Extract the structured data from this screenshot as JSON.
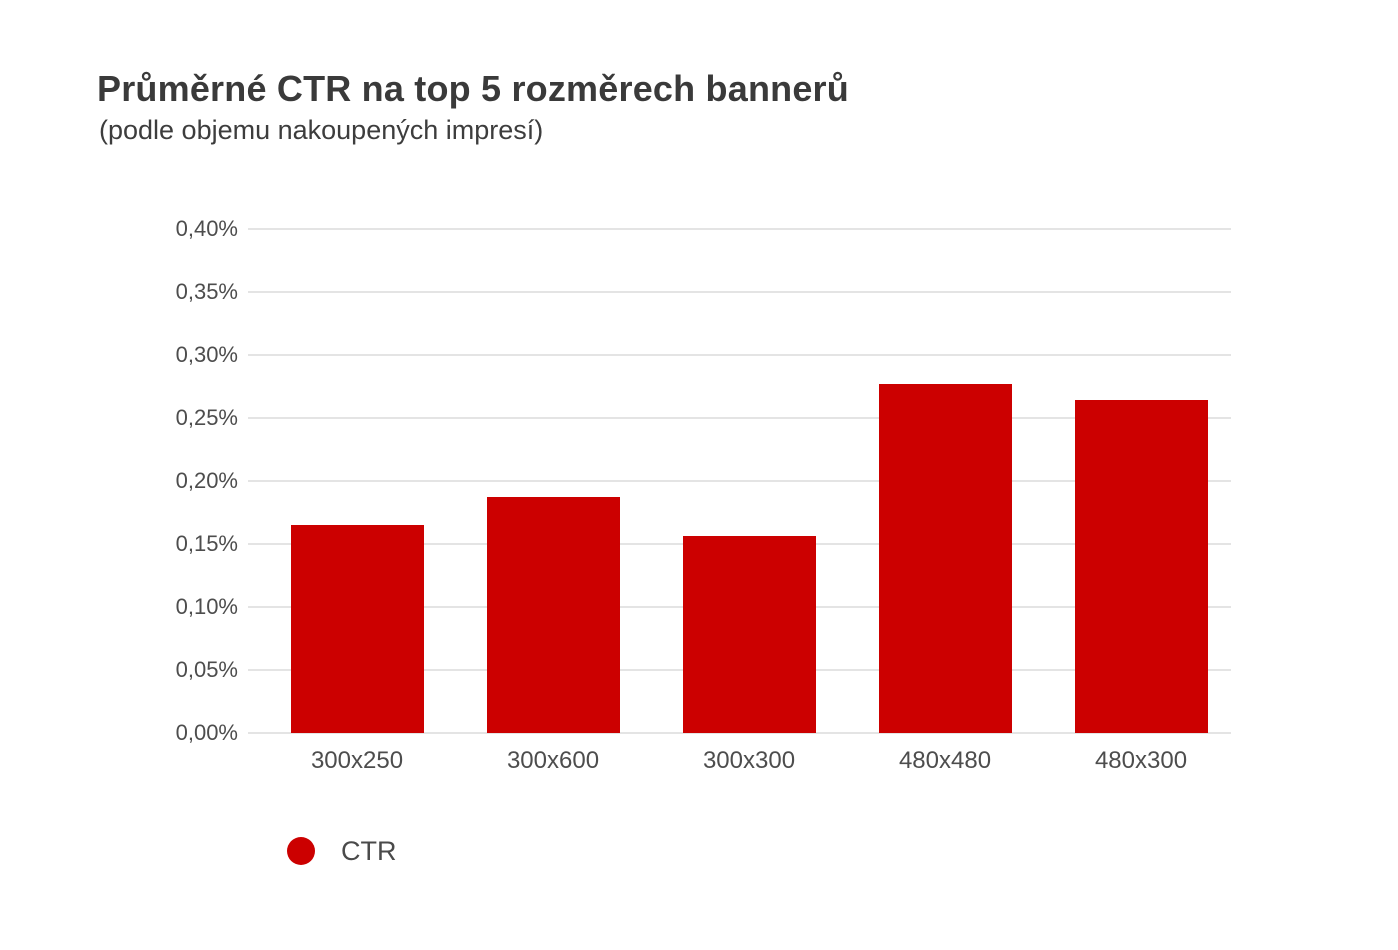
{
  "title": "Průměrné CTR na top 5 rozměrech bannerů",
  "subtitle": "(podle objemu nakoupených impresí)",
  "legend": [
    {
      "label": "CTR",
      "color": "#cc0000",
      "marker": "circle-icon"
    }
  ],
  "colors": {
    "bar": "#cc0000",
    "grid": "#e4e4e4",
    "title_text": "#3a3a3a",
    "axis_text": "#4d4d4d",
    "background": "#ffffff"
  },
  "chart_data": {
    "type": "bar",
    "title": "Průměrné CTR na top 5 rozměrech bannerů",
    "subtitle": "(podle objemu nakoupených impresí)",
    "categories": [
      "300x250",
      "300x600",
      "300x300",
      "480x480",
      "480x300"
    ],
    "series": [
      {
        "name": "CTR",
        "values": [
          0.165,
          0.187,
          0.156,
          0.277,
          0.264
        ]
      }
    ],
    "values_unit": "percent",
    "xlabel": "",
    "ylabel": "",
    "ylim": [
      0,
      0.4
    ],
    "ytick_step": 0.05,
    "ytick_labels": [
      "0,00%",
      "0,05%",
      "0,10%",
      "0,15%",
      "0,20%",
      "0,25%",
      "0,30%",
      "0,35%",
      "0,40%"
    ],
    "grid": true,
    "legend_position": "bottom-left"
  }
}
